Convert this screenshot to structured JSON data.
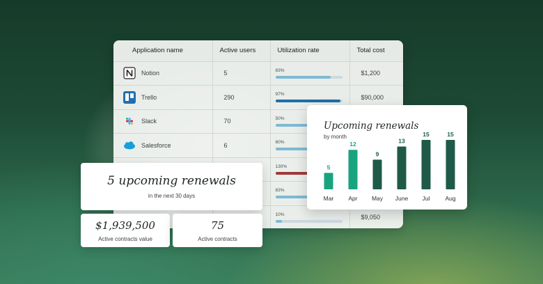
{
  "table": {
    "headers": {
      "app": "Application name",
      "users": "Active users",
      "util": "Utilization rate",
      "cost": "Total cost"
    },
    "rows": [
      {
        "name": "Notion",
        "icon": "notion-icon",
        "users": "5",
        "util_label": "83%",
        "util": 0.83,
        "bar_color": "#7eb9d4",
        "cost": "$1,200"
      },
      {
        "name": "Trello",
        "icon": "trello-icon",
        "users": "290",
        "util_label": "97%",
        "util": 0.97,
        "bar_color": "#1c6fa8",
        "cost": "$90,000"
      },
      {
        "name": "Slack",
        "icon": "slack-icon",
        "users": "70",
        "util_label": "50%",
        "util": 0.5,
        "bar_color": "#7eb9d4",
        "cost": ""
      },
      {
        "name": "Salesforce",
        "icon": "salesforce-icon",
        "users": "6",
        "util_label": "60%",
        "util": 0.6,
        "bar_color": "#7eb9d4",
        "cost": ""
      },
      {
        "name": "",
        "icon": "",
        "users": "",
        "util_label": "130%",
        "util": 1.0,
        "bar_color": "#a13a3a",
        "cost": ""
      },
      {
        "name": "",
        "icon": "",
        "users": "",
        "util_label": "83%",
        "util": 0.83,
        "bar_color": "#7eb9d4",
        "cost": ""
      },
      {
        "name": "",
        "icon": "",
        "users": "",
        "util_label": "10%",
        "util": 0.1,
        "bar_color": "#7eb9d4",
        "cost": "$9,050"
      }
    ]
  },
  "renewals_chart": {
    "title": "Upcoming renewals",
    "subtitle": "by month",
    "colors": {
      "light": "#19a37f",
      "dark": "#1f5a48"
    },
    "chart_data": {
      "type": "bar",
      "categories": [
        "Mar",
        "Apr",
        "May",
        "June",
        "Jul",
        "Aug"
      ],
      "values": [
        5,
        12,
        9,
        13,
        15,
        15
      ],
      "title": "Upcoming renewals",
      "subtitle": "by month",
      "ylim": [
        0,
        15
      ],
      "grid": false
    }
  },
  "stats": {
    "renewals": {
      "value": "5 upcoming renewals",
      "label": "in the next 30 days"
    },
    "contracts_value": {
      "value": "$1,939,500",
      "label": "Active contracts value"
    },
    "contracts_count": {
      "value": "75",
      "label": "Active contracts"
    }
  }
}
